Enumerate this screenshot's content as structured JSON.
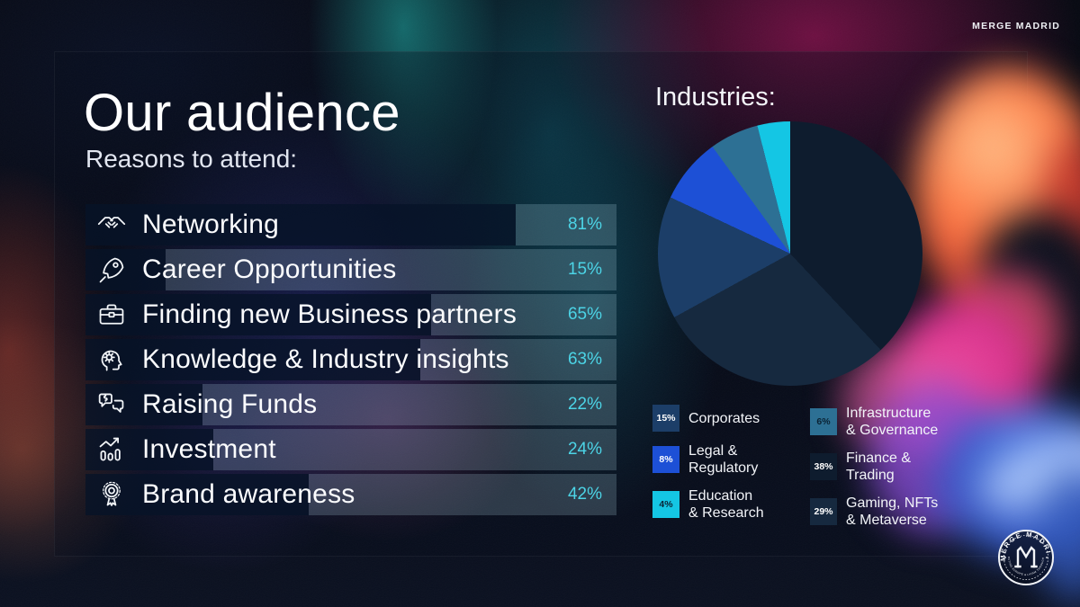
{
  "brand": {
    "top_right": "MERGE MADRID",
    "badge_title": "MERGE MADRID",
    "badge_tagline": "CONNECTING EUROPE & LATAM THROUGH WEB3",
    "badge_monogram": "M"
  },
  "header": {
    "title": "Our audience",
    "subtitle": "Reasons to attend:"
  },
  "industries": {
    "title": "Industries:",
    "legend_left": [
      {
        "pct_label": "15%",
        "lines": [
          "Corporates"
        ],
        "color": "#1c3e68",
        "pct_text_color": "#ffffff"
      },
      {
        "pct_label": "8%",
        "lines": [
          "Legal &",
          "Regulatory"
        ],
        "color": "#1d50d6",
        "pct_text_color": "#ffffff"
      },
      {
        "pct_label": "4%",
        "lines": [
          "Education",
          "& Research"
        ],
        "color": "#14c6e4",
        "pct_text_color": "#0a2233"
      }
    ],
    "legend_right": [
      {
        "pct_label": "6%",
        "lines": [
          "Infrastructure",
          "& Governance"
        ],
        "color": "#2d7094",
        "pct_text_color": "#0a2233"
      },
      {
        "pct_label": "38%",
        "lines": [
          "Finance &",
          "Trading"
        ],
        "color": "#0e1c2e",
        "pct_text_color": "#ffffff"
      },
      {
        "pct_label": "29%",
        "lines": [
          "Gaming, NFTs",
          "& Metaverse"
        ],
        "color": "#16293f",
        "pct_text_color": "#ffffff"
      }
    ]
  },
  "chart_data": [
    {
      "type": "bar",
      "title": "Reasons to attend:",
      "orientation": "horizontal",
      "categories": [
        "Networking",
        "Career Opportunities",
        "Finding new Business partners",
        "Knowledge & Industry insights",
        "Raising Funds",
        "Investment",
        "Brand awareness"
      ],
      "values": [
        81,
        15,
        65,
        63,
        22,
        24,
        42
      ],
      "value_labels": [
        "81%",
        "15%",
        "65%",
        "63%",
        "22%",
        "24%",
        "42%"
      ],
      "unit": "%",
      "xlim": [
        0,
        100
      ],
      "icons": [
        "handshake-icon",
        "rocket-icon",
        "briefcase-icon",
        "head-gear-icon",
        "funds-chat-icon",
        "chart-growth-icon",
        "award-icon"
      ],
      "bar_fill_rgba": "rgba(7,19,40,0.78)",
      "track_rgba": "rgba(190,230,246,0.20)",
      "value_label_color": "#4cd4e6",
      "grid": false
    },
    {
      "type": "pie",
      "title": "Industries:",
      "start_angle_deg": 0,
      "direction": "clockwise",
      "slices": [
        {
          "label": "Finance & Trading",
          "value": 38,
          "color": "#0e1c2e"
        },
        {
          "label": "Gaming, NFTs & Metaverse",
          "value": 29,
          "color": "#16293f"
        },
        {
          "label": "Corporates",
          "value": 15,
          "color": "#1c3e68"
        },
        {
          "label": "Legal & Regulatory",
          "value": 8,
          "color": "#1d50d6"
        },
        {
          "label": "Infrastructure & Governance",
          "value": 6,
          "color": "#2d7094"
        },
        {
          "label": "Education & Research",
          "value": 4,
          "color": "#14c6e4"
        }
      ],
      "legend_position": "bottom"
    }
  ]
}
